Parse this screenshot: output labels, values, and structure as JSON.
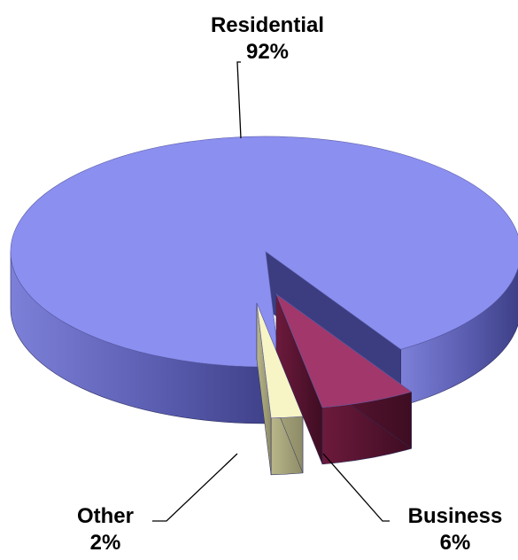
{
  "chart_data": {
    "type": "pie",
    "style": "3d-exploded",
    "grid": false,
    "legend": "none",
    "slices": [
      {
        "label": "Residential",
        "value": 92,
        "value_label": "92%",
        "color": "#8b8ff0"
      },
      {
        "label": "Business",
        "value": 6,
        "value_label": "6%",
        "color": "#9a2f5e"
      },
      {
        "label": "Other",
        "value": 2,
        "value_label": "2%",
        "color": "#f5f2c4"
      }
    ]
  }
}
